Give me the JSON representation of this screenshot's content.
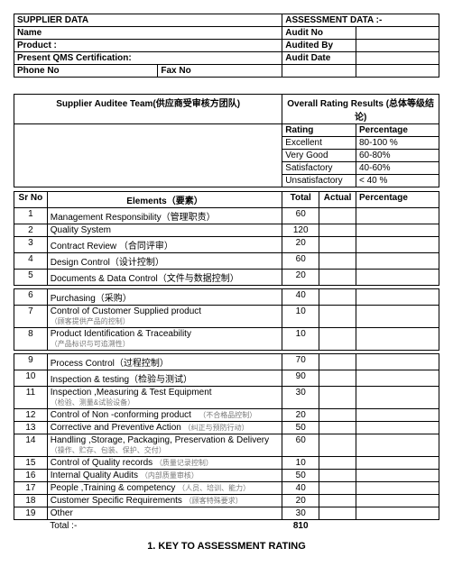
{
  "hdr": {
    "supplierData": "SUPPLIER  DATA",
    "assessmentData": "ASSESSMENT DATA :-",
    "name": "Name",
    "auditNo": "Audit No",
    "product": "Product :",
    "auditedBy": "Audited By",
    "qms": "Present QMS Certification:",
    "auditDate": "Audit Date",
    "phone": "Phone No",
    "fax": "Fax  No",
    "auditeeTeam": "Supplier Auditee Team(供应商受审核方团队)",
    "overallResults": "Overall Rating Results (总体等级结论)",
    "rating": "Rating",
    "percentage": "Percentage"
  },
  "ratings": [
    {
      "r": "Excellent",
      "p": "80-100 %"
    },
    {
      "r": "Very Good",
      "p": "60-80%"
    },
    {
      "r": "Satisfactory",
      "p": "40-60%"
    },
    {
      "r": "Unsatisfactory",
      "p": "< 40 %"
    }
  ],
  "cols": {
    "sr": "Sr No",
    "el": "Elements（要素）",
    "total": "Total",
    "actual": "Actual",
    "pct": "Percentage"
  },
  "rows": [
    {
      "n": "1",
      "e": "Management Responsibility（管理职责）",
      "t": "60"
    },
    {
      "n": "2",
      "e": "Quality System",
      "t": "120"
    },
    {
      "n": "3",
      "e": "Contract Review （合同评审）",
      "t": "20"
    },
    {
      "n": "4",
      "e": "Design Control（设计控制）",
      "t": "60"
    },
    {
      "n": "5",
      "e": "Documents & Data Control（文件与数据控制）",
      "t": "20"
    },
    {
      "n": "6",
      "e": "Purchasing（采购）",
      "t": "40"
    },
    {
      "n": "7",
      "e": "Control of Customer Supplied product<br><span class='sm'>（顾客提供产品的控制）</span>",
      "t": "10"
    },
    {
      "n": "8",
      "e": "Product Identification & Traceability<br><span class='sm'>（产品标识与可追溯性）</span>",
      "t": "10"
    },
    {
      "n": "9",
      "e": "Process Control（过程控制）",
      "t": "70"
    },
    {
      "n": "10",
      "e": "Inspection & testing（检验与测试）",
      "t": "90"
    },
    {
      "n": "11",
      "e": "Inspection ,Measuring & Test Equipment<br><span class='sm'>（检验、测量&试验设备）</span>",
      "t": "30"
    },
    {
      "n": "12",
      "e": "Control of Non -conforming product &nbsp;&nbsp;<span class='sm'>（不合格品控制）</span>",
      "t": "20"
    },
    {
      "n": "13",
      "e": "Corrective and Preventive Action <span class='sm'>（纠正与预防行动）</span>",
      "t": "50"
    },
    {
      "n": "14",
      "e": "Handling ,Storage, Packaging, Preservation & Delivery <span class='sm'>（操作、贮存、包装、保护、交付）</span>",
      "t": "60"
    },
    {
      "n": "15",
      "e": "Control of Quality records <span class='sm'>（质量记录控制）</span>",
      "t": "10"
    },
    {
      "n": "16",
      "e": "Internal Quality Audits <span class='sm'>（内部质量审核）</span>",
      "t": "50"
    },
    {
      "n": "17",
      "e": "People ,Training & competency <span class='sm'>（人员、培训、能力）</span>",
      "t": "40"
    },
    {
      "n": "18",
      "e": "Customer Specific Requirements <span class='sm'>（顾客特殊要求）</span>",
      "t": "20"
    },
    {
      "n": "19",
      "e": "Other",
      "t": "30"
    }
  ],
  "totalLabel": "Total :-",
  "totalValue": "810",
  "footer": "1. KEY TO ASSESSMENT RATING"
}
